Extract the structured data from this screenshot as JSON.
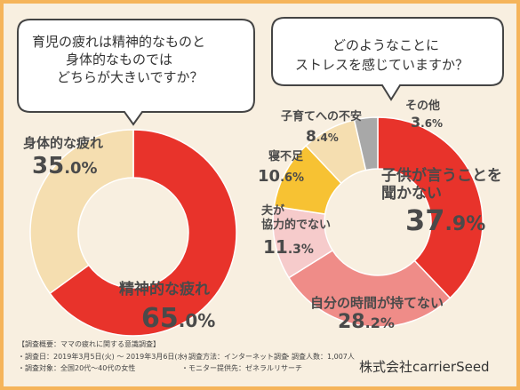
{
  "chart_data": [
    {
      "type": "pie",
      "donut": true,
      "title": [
        "育児の疲れは精神的なものと",
        "身体的なものでは",
        "どちらが大きいですか？"
      ],
      "categories": [
        "精神的な疲れ",
        "身体的な疲れ"
      ],
      "values": [
        65.0,
        35.0
      ],
      "value_labels": [
        "65.0%",
        "35.0%"
      ],
      "colors": [
        "#e8332b",
        "#f5deb0"
      ]
    },
    {
      "type": "pie",
      "donut": true,
      "title": [
        "どのようなことに",
        "ストレスを感じていますか？"
      ],
      "categories": [
        "子供が言うことを\n聞かない",
        "自分の時間が持てない",
        "夫が\n協力的でない",
        "寝不足",
        "子育てへの不安",
        "その他"
      ],
      "values": [
        37.9,
        28.2,
        11.3,
        10.6,
        8.4,
        3.6
      ],
      "value_labels": [
        "37.9%",
        "28.2%",
        "11.3%",
        "10.6%",
        "8.4%",
        "3.6%"
      ],
      "colors": [
        "#e8332b",
        "#ef8c88",
        "#f6cbcb",
        "#f7c233",
        "#f5deb0",
        "#a8a8a8"
      ]
    }
  ],
  "footer": {
    "lines": [
      "【調査概要：ママの疲れに関する意識調査】",
      "・調査日：2019年3月5日(火) ～ 2019年3月6日(水)",
      "・調査方法：インターネット調査",
      "・調査人数：1,007人",
      "・調査対象：全国20代～40代の女性",
      "・モニター提供先：ゼネラルリサーチ"
    ],
    "company": "株式会社carrierSeed"
  }
}
